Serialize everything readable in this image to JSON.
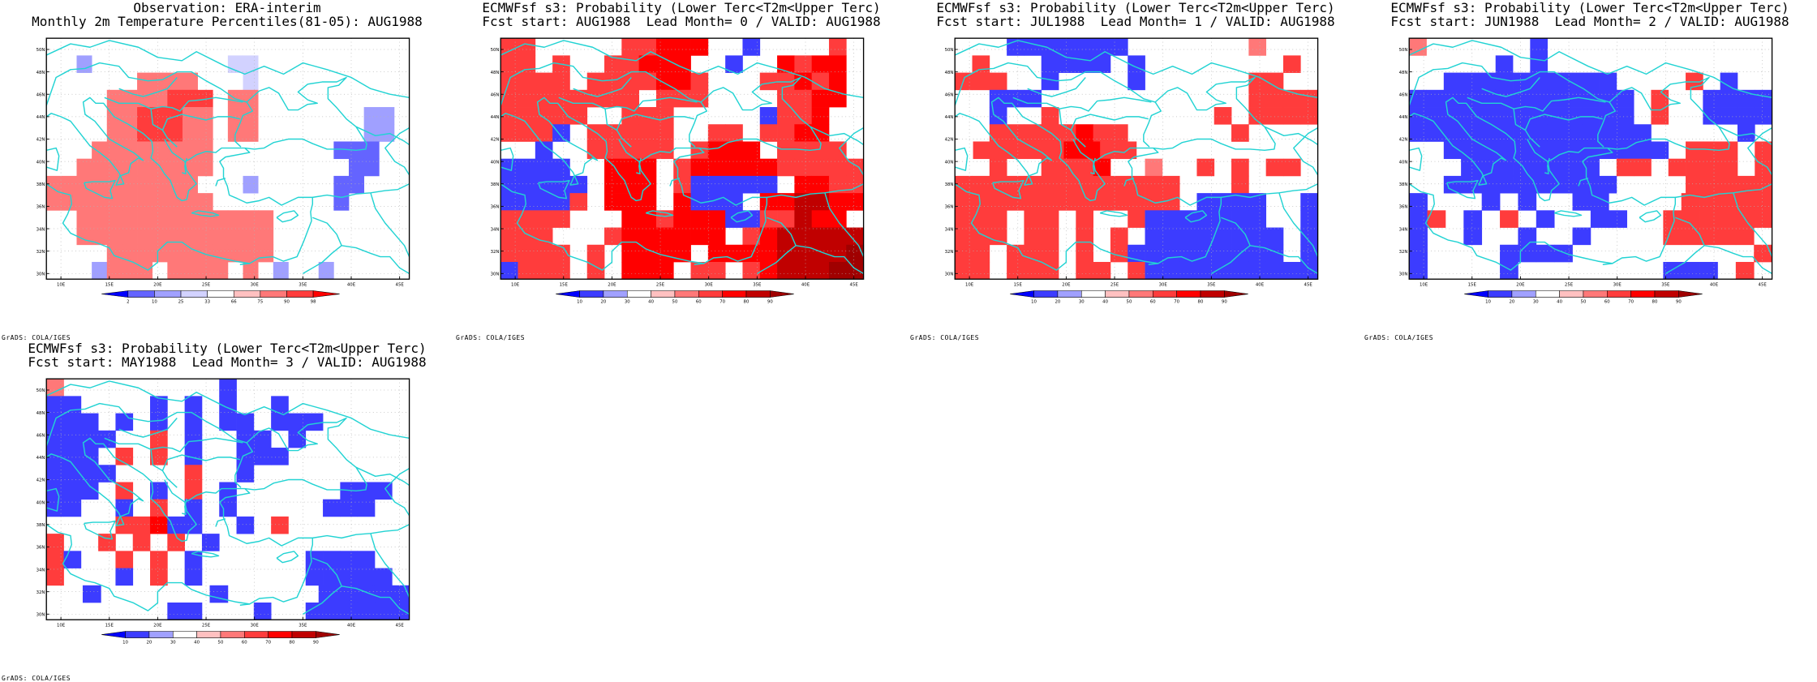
{
  "colors": {
    "cyan": "#22d3d3",
    "frame": "#000000",
    "grid": "#b4b4b4"
  },
  "map_axes": {
    "lat_labels": [
      "50N",
      "48N",
      "46N",
      "44N",
      "42N",
      "40N",
      "38N",
      "36N",
      "34N",
      "32N",
      "30N"
    ],
    "lon_labels": [
      "10E",
      "15E",
      "20E",
      "25E",
      "30E",
      "35E",
      "40E",
      "45E"
    ]
  },
  "credit": "GrADS: COLA/IGES",
  "panels": [
    {
      "title_line1": "Observation: ERA-interim",
      "title_line2": "Monthly 2m Temperature Percentiles(81-05): AUG1988",
      "legend": {
        "labels": [
          "2",
          "10",
          "25",
          "33",
          "66",
          "75",
          "90",
          "98"
        ],
        "colors": [
          "#0000ff",
          "#6464ff",
          "#a0a0ff",
          "#d2d2ff",
          "#ffffff",
          "#ffc0c0",
          "#ff7878",
          "#ff3c3c",
          "#ff0000"
        ]
      },
      "cells": [
        "........................",
        "..2.........33..........",
        "......6666...3..........",
        "....6666777.66..........",
        "....6677766.66.......22.",
        "....6677766.66.......22.",
        "...66666666........111..",
        "..666666666.........11..",
        "6666666666...2.....11...",
        "66666666666........1....",
        "..6666666666666.........",
        "..6666666666666.........",
        "....66666666666.........",
        "...2666.6666.6.2..2....."
      ]
    },
    {
      "title_line1": "ECMWFsf s3: Probability (Lower Terc<T2m<Upper Terc)",
      "title_line2": "Fcst start: AUG1988  Lead Month= 0 / VALID: AUG1988",
      "legend": {
        "labels": [
          "10",
          "20",
          "30",
          "40",
          "50",
          "60",
          "70",
          "80",
          "90"
        ],
        "colors": [
          "#0000ff",
          "#3c3cff",
          "#a0a0ff",
          "#ffffff",
          "#ffc0c0",
          "#ff7878",
          "#ff3c3c",
          "#ff0000",
          "#c00000",
          "#a00000"
        ]
      },
      "cells": [
        "66.....66777..1....6.",
        "66.6..66777..1..7677.",
        "6666.6666776...66767.",
        "66666666.666....6677.",
        "66666..666.....1667..",
        "6661.66666..66.6677..",
        "..1..66666.6777.6666.",
        "1111..777.67777766666",
        "11111.777.611111.7766",
        "11116.777.7111.778877",
        "6666...7767771166877.",
        "666...6777777.6788888",
        "6666.6.7777.777788889",
        "1666.6.777.66.6788899"
      ]
    },
    {
      "title_line1": "ECMWFsf s3: Probability (Lower Terc<T2m<Upper Terc)",
      "title_line2": "Fcst start: JUL1988  Lead Month= 1 / VALID: AUG1988",
      "legend": {
        "labels": [
          "10",
          "20",
          "30",
          "40",
          "50",
          "60",
          "70",
          "80",
          "90"
        ],
        "colors": [
          "#0000ff",
          "#3c3cff",
          "#a0a0ff",
          "#ffffff",
          "#ffc0c0",
          "#ff7878",
          "#ff3c3c",
          "#ff0000",
          "#c00000",
          "#a00000"
        ]
      },
      "cells": [
        "...1111111.......5...",
        ".6...1111.1........6.",
        "666..1....1......66..",
        "..111............6666",
        "..1..6.........6.6666",
        "..66666766......6....",
        ".666667766..........",
        "..6..6667..5..6.6.66.",
        "6666666666666...6....",
        "6666666666666.1111..1",
        "666.66.6..61111111..1",
        "666.66.6.6.11111111.1",
        "66.666.6.6111111111.1",
        "66.666.66.61111111111"
      ]
    },
    {
      "title_line1": "ECMWFsf s3: Probability (Lower Terc<T2m<Upper Terc)",
      "title_line2": "Fcst start: JUN1988  Lead Month= 2 / VALID: AUG1988",
      "legend": {
        "labels": [
          "10",
          "20",
          "30",
          "40",
          "50",
          "60",
          "70",
          "80",
          "90"
        ],
        "colors": [
          "#0000ff",
          "#3c3cff",
          "#a0a0ff",
          "#ffffff",
          "#ffc0c0",
          "#ff7878",
          "#ff3c3c",
          "#ff0000",
          "#c00000",
          "#a00000"
        ]
      },
      "cells": [
        "5......1.............",
        ".....1.1.............",
        "..1111111111....6.1..",
        "1111111111111.6..1111",
        "1111111111111.6..1111",
        "11111111111111.....1.",
        "..1111111111111.666.6",
        "...11111111.66.6666.6",
        "..1111111111....66666",
        "1...1.1..11....66666",
        "16.1.6.1..11..666666",
        "1..1..1..1....66666.",
        "1....1111..........6",
        "1....1........111.6."
      ]
    },
    {
      "title_line1": "ECMWFsf s3: Probability (Lower Terc<T2m<Upper Terc)",
      "title_line2": "Fcst start: MAY1988  Lead Month= 3 / VALID: AUG1988",
      "legend": {
        "labels": [
          "10",
          "20",
          "30",
          "40",
          "50",
          "60",
          "70",
          "80",
          "90"
        ],
        "colors": [
          "#0000ff",
          "#3c3cff",
          "#a0a0ff",
          "#ffffff",
          "#ffc0c0",
          "#ff7878",
          "#ff3c3c",
          "#ff0000",
          "#c00000",
          "#a00000"
        ]
      },
      "cells": [
        "5.........1..........",
        "11....1.1.1..1.......",
        "111.1.1.1.11.111.....",
        "1111..6.1..11.1......",
        "111.6.6.1..111.......",
        "1111....6..1.........",
        "111.6.1.6.1......111.",
        "11..1.6.1.1.....111..",
        "....66711..1.6.......",
        "6..6.6.6.1...........",
        "61..6.6.1......1111..",
        "6...1.6.1......11111.",
        "..1......1.....11111",
        ".......11...1..111111"
      ]
    }
  ]
}
